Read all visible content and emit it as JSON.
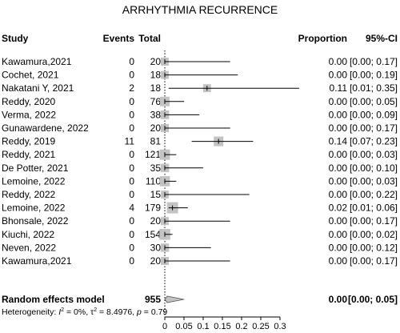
{
  "chart_data": {
    "type": "forest",
    "title": "ARRHYTHMIA RECURRENCE",
    "columns": {
      "study": "Study",
      "events": "Events",
      "total": "Total",
      "proportion": "Proportion",
      "ci": "95%-CI"
    },
    "studies": [
      {
        "study": "Kawamura,2021",
        "events": 0,
        "total": 20,
        "proportion": "0.00",
        "ci": "[0.00; 0.17]",
        "est": 0.0,
        "lo": 0.0,
        "hi": 0.17
      },
      {
        "study": "Cochet, 2021",
        "events": 0,
        "total": 18,
        "proportion": "0.00",
        "ci": "[0.00; 0.19]",
        "est": 0.0,
        "lo": 0.0,
        "hi": 0.19
      },
      {
        "study": "Nakatani Y, 2021",
        "events": 2,
        "total": 18,
        "proportion": "0.11",
        "ci": "[0.01; 0.35]",
        "est": 0.11,
        "lo": 0.01,
        "hi": 0.35
      },
      {
        "study": "Reddy, 2020",
        "events": 0,
        "total": 76,
        "proportion": "0.00",
        "ci": "[0.00; 0.05]",
        "est": 0.0,
        "lo": 0.0,
        "hi": 0.05
      },
      {
        "study": "Verma, 2022",
        "events": 0,
        "total": 38,
        "proportion": "0.00",
        "ci": "[0.00; 0.09]",
        "est": 0.0,
        "lo": 0.0,
        "hi": 0.09
      },
      {
        "study": "Gunawardene, 2022",
        "events": 0,
        "total": 20,
        "proportion": "0.00",
        "ci": "[0.00; 0.17]",
        "est": 0.0,
        "lo": 0.0,
        "hi": 0.17
      },
      {
        "study": "Reddy, 2019",
        "events": 11,
        "total": 81,
        "proportion": "0.14",
        "ci": "[0.07; 0.23]",
        "est": 0.14,
        "lo": 0.07,
        "hi": 0.23
      },
      {
        "study": "Reddy, 2021",
        "events": 0,
        "total": 121,
        "proportion": "0.00",
        "ci": "[0.00; 0.03]",
        "est": 0.0,
        "lo": 0.0,
        "hi": 0.03
      },
      {
        "study": "De Potter, 2021",
        "events": 0,
        "total": 35,
        "proportion": "0.00",
        "ci": "[0.00; 0.10]",
        "est": 0.0,
        "lo": 0.0,
        "hi": 0.1
      },
      {
        "study": "Lemoine, 2022",
        "events": 0,
        "total": 110,
        "proportion": "0.00",
        "ci": "[0.00; 0.03]",
        "est": 0.0,
        "lo": 0.0,
        "hi": 0.03
      },
      {
        "study": "Reddy, 2022",
        "events": 0,
        "total": 15,
        "proportion": "0.00",
        "ci": "[0.00; 0.22]",
        "est": 0.0,
        "lo": 0.0,
        "hi": 0.22
      },
      {
        "study": "Lemoine, 2022",
        "events": 4,
        "total": 179,
        "proportion": "0.02",
        "ci": "[0.01; 0.06]",
        "est": 0.02,
        "lo": 0.01,
        "hi": 0.06
      },
      {
        "study": "Bhonsale, 2022",
        "events": 0,
        "total": 20,
        "proportion": "0.00",
        "ci": "[0.00; 0.17]",
        "est": 0.0,
        "lo": 0.0,
        "hi": 0.17
      },
      {
        "study": "Kiuchi, 2022",
        "events": 0,
        "total": 154,
        "proportion": "0.00",
        "ci": "[0.00; 0.02]",
        "est": 0.0,
        "lo": 0.0,
        "hi": 0.02
      },
      {
        "study": "Neven, 2022",
        "events": 0,
        "total": 30,
        "proportion": "0.00",
        "ci": "[0.00; 0.12]",
        "est": 0.0,
        "lo": 0.0,
        "hi": 0.12
      },
      {
        "study": "Kawamura,2021",
        "events": 0,
        "total": 20,
        "proportion": "0.00",
        "ci": "[0.00; 0.17]",
        "est": 0.0,
        "lo": 0.0,
        "hi": 0.17
      }
    ],
    "summary": {
      "label": "Random effects model",
      "total": 955,
      "proportion": "0.00",
      "ci": "[0.00; 0.05]",
      "est": 0.0,
      "lo": 0.0,
      "hi": 0.05
    },
    "heterogeneity": {
      "prefix": "Heterogeneity: ",
      "i2_symbol": "I",
      "i2_sup": "2",
      "i2_value": " = 0%, ",
      "tau_symbol": "τ",
      "tau_sup": "2",
      "tau_value": " = 8.4976, ",
      "p_symbol": "p",
      "p_value": " = 0.79"
    },
    "x_ticks": [
      0,
      0.05,
      0.1,
      0.15,
      0.2,
      0.25,
      0.3
    ],
    "x_tick_labels": [
      "0",
      "0.05",
      "0.1",
      "0.15",
      "0.2",
      "0.25",
      "0.3"
    ],
    "xlim": [
      0,
      0.3
    ]
  }
}
